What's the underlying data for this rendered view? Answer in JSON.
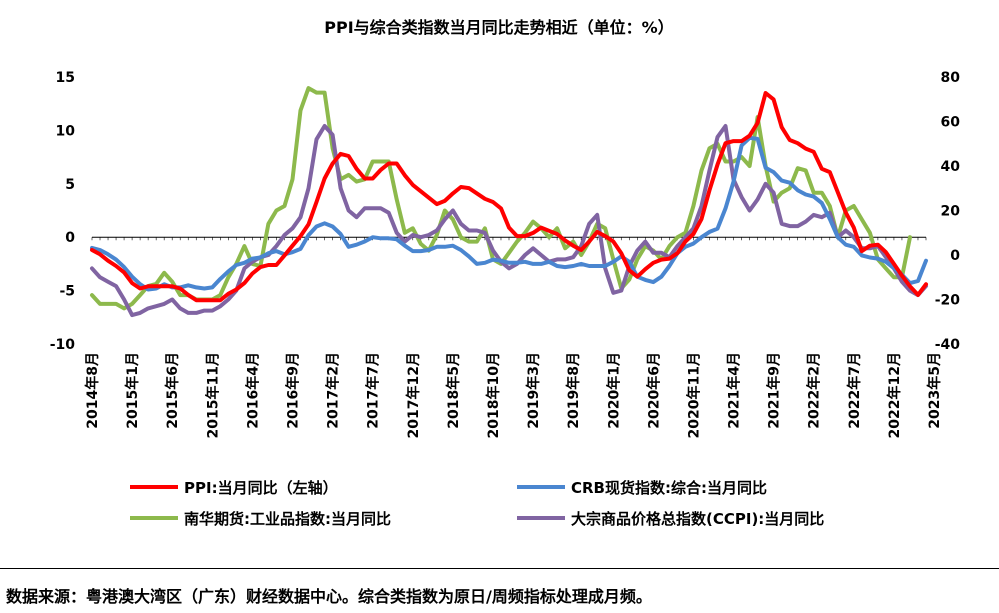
{
  "source_note": "数据来源：粤港澳大湾区（广东）财经数据中心。综合类指数为原日/周频指标处理成月频。",
  "chart_data": {
    "type": "line",
    "title": "PPI与综合类指数当月同比走势相近（单位：%）",
    "xlabel": "",
    "ylabel": "",
    "ylim_left": [
      -10,
      15
    ],
    "ylim_right": [
      -40,
      80
    ],
    "yticks_left": [
      -10,
      -5,
      0,
      5,
      10,
      15
    ],
    "yticks_right": [
      -40,
      -20,
      0,
      20,
      40,
      60,
      80
    ],
    "xlabels_shown": [
      "2014年8月",
      "2015年1月",
      "2015年6月",
      "2015年11月",
      "2016年4月",
      "2016年9月",
      "2017年2月",
      "2017年7月",
      "2017年12月",
      "2018年5月",
      "2018年10月",
      "2019年3月",
      "2019年8月",
      "2020年1月",
      "2020年6月",
      "2020年11月",
      "2021年4月",
      "2021年9月",
      "2022年2月",
      "2022年7月",
      "2022年12月",
      "2023年5月"
    ],
    "grid": false,
    "legend_position": "bottom",
    "x_start": "2014-08",
    "x_end": "2023-07",
    "colors": {
      "ppi": "#ff0000",
      "crb": "#4a86d0",
      "nanhua": "#8db94c",
      "ccpi": "#8064a2"
    },
    "series": [
      {
        "name": "PPI:当月同比（左轴）",
        "axis": "left",
        "color_key": "ppi",
        "values": [
          -1.2,
          -1.6,
          -2.2,
          -2.7,
          -3.3,
          -4.3,
          -4.8,
          -4.6,
          -4.6,
          -4.6,
          -4.6,
          -4.8,
          -5.4,
          -5.9,
          -5.9,
          -5.9,
          -5.9,
          -5.3,
          -4.9,
          -4.3,
          -3.4,
          -2.8,
          -2.6,
          -2.6,
          -1.7,
          -0.8,
          0.1,
          1.2,
          3.3,
          5.5,
          6.9,
          7.8,
          7.6,
          6.4,
          5.5,
          5.5,
          6.3,
          6.9,
          6.9,
          5.8,
          4.9,
          4.3,
          3.7,
          3.1,
          3.4,
          4.1,
          4.7,
          4.6,
          4.1,
          3.6,
          3.3,
          2.7,
          0.9,
          0.1,
          0.1,
          0.4,
          0.9,
          0.6,
          0.3,
          -0.3,
          -0.8,
          -1.2,
          -0.4,
          0.5,
          0.1,
          -0.4,
          -1.5,
          -3.1,
          -3.7,
          -3.0,
          -2.4,
          -2.1,
          -2.0,
          -1.5,
          -0.4,
          0.3,
          1.7,
          4.4,
          6.8,
          8.8,
          9.0,
          9.0,
          9.5,
          10.7,
          13.5,
          12.9,
          10.3,
          9.1,
          8.8,
          8.3,
          8.0,
          6.4,
          6.1,
          4.2,
          2.3,
          0.9,
          -1.3,
          -0.8,
          -0.7,
          -1.4,
          -2.5,
          -3.6,
          -4.6,
          -5.4,
          -4.4
        ]
      },
      {
        "name": "CRB现货指数:综合:当月同比",
        "axis": "left",
        "color_key": "crb",
        "values": [
          -1.0,
          -1.2,
          -1.6,
          -2.1,
          -2.8,
          -3.7,
          -4.4,
          -4.9,
          -4.8,
          -4.4,
          -4.7,
          -4.7,
          -4.5,
          -4.7,
          -4.8,
          -4.7,
          -3.9,
          -3.2,
          -2.6,
          -2.4,
          -2.0,
          -1.9,
          -1.5,
          -1.3,
          -1.6,
          -1.4,
          -1.1,
          0.2,
          1.0,
          1.3,
          1.0,
          0.3,
          -0.9,
          -0.7,
          -0.4,
          0.0,
          -0.1,
          -0.1,
          -0.2,
          -0.8,
          -1.3,
          -1.3,
          -1.2,
          -0.9,
          -0.9,
          -0.8,
          -1.2,
          -1.8,
          -2.5,
          -2.4,
          -2.1,
          -2.2,
          -2.4,
          -2.4,
          -2.3,
          -2.5,
          -2.5,
          -2.3,
          -2.7,
          -2.8,
          -2.7,
          -2.5,
          -2.7,
          -2.7,
          -2.7,
          -2.3,
          -1.8,
          -2.3,
          -3.7,
          -4.0,
          -4.2,
          -3.7,
          -2.7,
          -1.5,
          -0.9,
          -0.6,
          0.0,
          0.5,
          0.8,
          2.7,
          5.2,
          8.6,
          9.3,
          9.2,
          6.5,
          6.1,
          5.3,
          5.1,
          4.4,
          4.0,
          3.8,
          3.2,
          1.7,
          0.0,
          -0.7,
          -0.9,
          -1.7,
          -1.9,
          -2.0,
          -2.3,
          -2.9,
          -3.5,
          -4.3,
          -4.1,
          -2.2
        ]
      },
      {
        "name": "南华期货:工业品指数:当月同比",
        "axis": "right",
        "color_key": "nanhua",
        "values": [
          -18,
          -22,
          -22,
          -22,
          -24,
          -22,
          -18,
          -14,
          -13,
          -8,
          -12,
          -18,
          -18,
          -20,
          -20,
          -20,
          -18,
          -10,
          -4,
          4,
          -4,
          -5,
          14,
          20,
          22,
          34,
          65,
          75,
          73,
          73,
          48,
          34,
          36,
          33,
          34,
          42,
          42,
          42,
          25,
          10,
          12,
          5,
          2,
          9,
          20,
          16,
          8,
          6,
          6,
          12,
          -2,
          -4,
          1,
          6,
          10,
          15,
          12,
          8,
          12,
          3,
          6,
          0,
          6,
          14,
          12,
          -2,
          -15,
          -11,
          -2,
          4,
          2,
          -2,
          4,
          8,
          10,
          22,
          38,
          48,
          50,
          42,
          42,
          44,
          40,
          62,
          40,
          24,
          28,
          30,
          39,
          38,
          28,
          28,
          22,
          8,
          20,
          22,
          16,
          10,
          -2,
          -6,
          -10,
          -10,
          8
        ]
      },
      {
        "name": "大宗商品价格总指数(CCPI):当月同比",
        "axis": "right",
        "color_key": "ccpi",
        "values": [
          -6,
          -10,
          -12,
          -14,
          -20,
          -27,
          -26,
          -24,
          -23,
          -22,
          -20,
          -24,
          -26,
          -26,
          -25,
          -25,
          -23,
          -20,
          -16,
          -6,
          -3,
          -1,
          0,
          4,
          9,
          12,
          17,
          30,
          52,
          58,
          54,
          30,
          20,
          17,
          21,
          21,
          21,
          19,
          10,
          6,
          9,
          8,
          9,
          11,
          16,
          20,
          14,
          11,
          11,
          10,
          2,
          -3,
          -6,
          -4,
          0,
          3,
          0,
          -3,
          -2,
          -2,
          -1,
          4,
          14,
          18,
          -6,
          -17,
          -16,
          -5,
          2,
          6,
          1,
          1,
          -1,
          4,
          8,
          12,
          22,
          38,
          53,
          58,
          34,
          26,
          20,
          25,
          32,
          28,
          14,
          13,
          13,
          15,
          18,
          17,
          19,
          8,
          11,
          8,
          3,
          3,
          4,
          -1,
          -6,
          -12,
          -16,
          -18,
          -14
        ]
      }
    ]
  }
}
